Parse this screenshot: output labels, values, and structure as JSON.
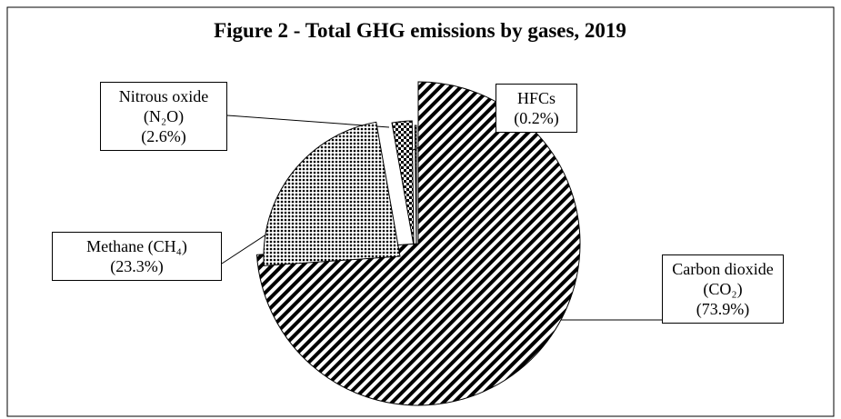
{
  "chart_data": {
    "type": "pie",
    "title": "Figure 2 - Total GHG emissions by gases, 2019",
    "categories": [
      "Carbon dioxide (CO₂)",
      "Methane (CH₄)",
      "Nitrous oxide (N₂O)",
      "HFCs"
    ],
    "values": [
      73.9,
      23.3,
      2.6,
      0.2
    ],
    "value_labels": [
      "(73.9%)",
      "(23.3%)",
      "(2.6%)",
      "(0.2%)"
    ]
  }
}
